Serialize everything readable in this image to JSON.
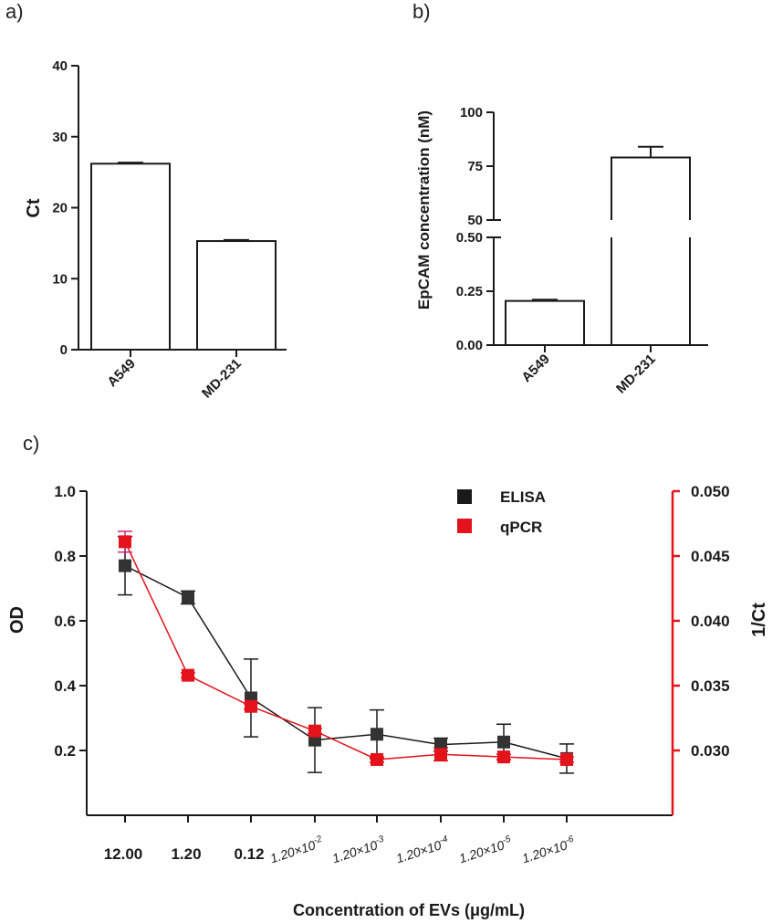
{
  "colors": {
    "black": "#1a1a1a",
    "red": "#e3121b",
    "grey_marker": "#333333",
    "qpcr_err_top": "#d6247a"
  },
  "chart_data": [
    {
      "panel": "a)",
      "type": "bar",
      "categories": [
        "A549",
        "MD-231"
      ],
      "values": [
        26.2,
        15.3
      ],
      "errors": [
        0.15,
        0.15
      ],
      "ylabel": "Ct",
      "ylim": [
        0,
        40
      ],
      "yticks": [
        0,
        10,
        20,
        30,
        40
      ]
    },
    {
      "panel": "b)",
      "type": "bar",
      "broken_axis": true,
      "categories": [
        "A549",
        "MD-231"
      ],
      "values": [
        0.205,
        79
      ],
      "errors": [
        0.006,
        5
      ],
      "ylabel": "EpCAM concentration (nM)",
      "lower_segment": {
        "ylim": [
          0,
          0.5
        ],
        "yticks": [
          "0.00",
          "0.25",
          "0.50"
        ]
      },
      "upper_segment": {
        "ylim": [
          50,
          100
        ],
        "yticks": [
          "50",
          "75",
          "100"
        ]
      }
    },
    {
      "panel": "c)",
      "type": "line",
      "categories": [
        "12.00",
        "1.20",
        "0.12",
        "1.20×10⁻²",
        "1.20×10⁻³",
        "1.20×10⁻⁴",
        "1.20×10⁻⁵",
        "1.20×10⁻⁶"
      ],
      "category_parts": [
        {
          "main": "12.00",
          "exp": ""
        },
        {
          "main": "1.20",
          "exp": ""
        },
        {
          "main": "0.12",
          "exp": ""
        },
        {
          "main": "1.20×10",
          "exp": "-2"
        },
        {
          "main": "1.20×10",
          "exp": "-3"
        },
        {
          "main": "1.20×10",
          "exp": "-4"
        },
        {
          "main": "1.20×10",
          "exp": "-5"
        },
        {
          "main": "1.20×10",
          "exp": "-6"
        }
      ],
      "xlabel": "Concentration of EVs (μg/mL)",
      "ylabel_left": "OD",
      "ylabel_right": "1/Ct",
      "ylim_left": [
        0,
        1.0
      ],
      "yticks_left": [
        "0.2",
        "0.4",
        "0.6",
        "0.8",
        "1.0"
      ],
      "ylim_right": [
        0.025,
        0.05
      ],
      "yticks_right": [
        "0.030",
        "0.035",
        "0.040",
        "0.045",
        "0.050"
      ],
      "legend_position": "top-right",
      "series": [
        {
          "name": "ELISA",
          "axis": "left",
          "color": "#333333",
          "values": [
            0.77,
            0.672,
            0.362,
            0.232,
            0.25,
            0.218,
            0.226,
            0.175
          ],
          "errors": [
            0.09,
            0.02,
            0.12,
            0.1,
            0.075,
            0.02,
            0.055,
            0.045
          ]
        },
        {
          "name": "qPCR",
          "axis": "right",
          "color": "#e3121b",
          "values": [
            0.0461,
            0.0358,
            0.0334,
            0.0315,
            0.0293,
            0.0297,
            0.0295,
            0.0293
          ],
          "errors": [
            0.0008,
            0.0002,
            0.0002,
            0.0002,
            0.0002,
            0.0005,
            0.0002,
            0.0002
          ]
        }
      ]
    }
  ]
}
